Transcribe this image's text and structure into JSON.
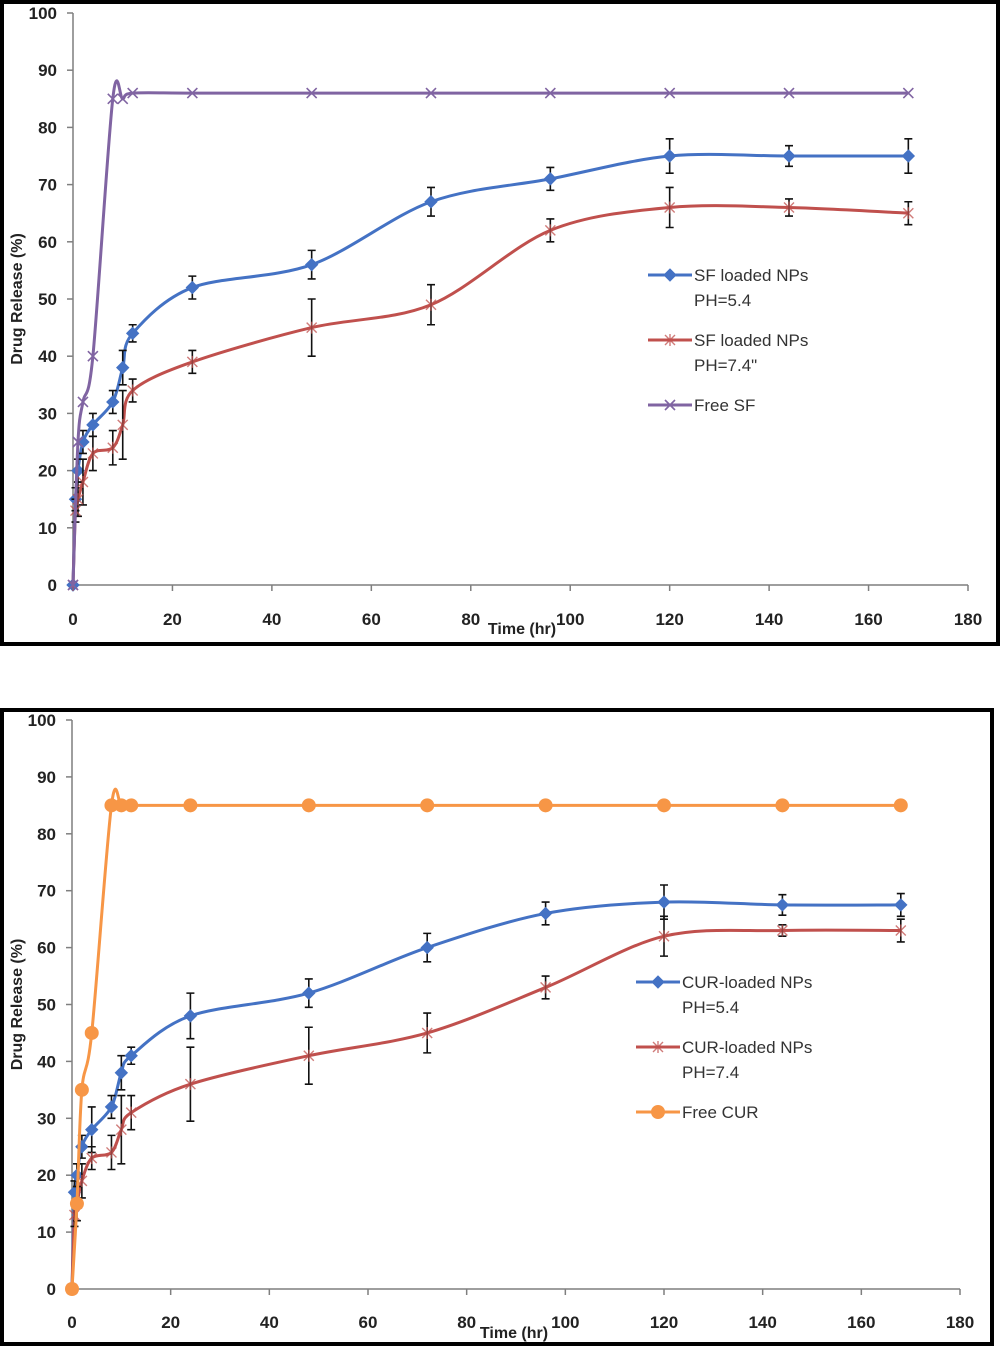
{
  "chart_data": [
    {
      "type": "line",
      "xlabel": "Time (hr)",
      "ylabel": "Drug Release (%)",
      "xlim": [
        0,
        180
      ],
      "ylim": [
        0,
        100
      ],
      "x_ticks": [
        "0",
        "20",
        "40",
        "60",
        "80",
        "100",
        "120",
        "140",
        "160",
        "180"
      ],
      "y_ticks": [
        "0",
        "10",
        "20",
        "30",
        "40",
        "50",
        "60",
        "70",
        "80",
        "90",
        "100"
      ],
      "grid": false,
      "legend_position": "right",
      "series": [
        {
          "name": "SF loaded NPs",
          "name_line2": "PH=5.4",
          "color": "#4472c4",
          "marker": "diamond",
          "x": [
            0,
            0.5,
            1,
            2,
            4,
            8,
            10,
            12,
            24,
            48,
            72,
            96,
            120,
            144,
            168
          ],
          "y": [
            0,
            15,
            20,
            25,
            28,
            32,
            38,
            44,
            52,
            56,
            67,
            71,
            75,
            75,
            75
          ],
          "err": [
            0,
            2,
            2,
            2,
            2,
            2,
            3,
            1.5,
            2,
            2.5,
            2.5,
            2,
            3,
            1.8,
            3
          ]
        },
        {
          "name": "SF loaded NPs",
          "name_line2": "PH=7.4\"",
          "color": "#c0504d",
          "marker": "star",
          "x": [
            0,
            0.5,
            1,
            2,
            4,
            8,
            10,
            12,
            24,
            48,
            72,
            96,
            120,
            144,
            168
          ],
          "y": [
            0,
            13,
            15,
            18,
            23,
            24,
            28,
            34,
            39,
            45,
            49,
            62,
            66,
            66,
            65
          ],
          "err": [
            0,
            2,
            3,
            4,
            3,
            3,
            6,
            2,
            2,
            5,
            3.5,
            2,
            3.5,
            1.5,
            2
          ]
        },
        {
          "name": "Free SF",
          "color": "#8064a2",
          "marker": "x",
          "x": [
            0,
            1,
            2,
            4,
            8,
            10,
            12,
            24,
            48,
            72,
            96,
            120,
            144,
            168
          ],
          "y": [
            0,
            25,
            32,
            40,
            85,
            85,
            86,
            86,
            86,
            86,
            86,
            86,
            86,
            86
          ],
          "err": []
        }
      ]
    },
    {
      "type": "line",
      "xlabel": "Time (hr)",
      "ylabel": "Drug Release (%)",
      "xlim": [
        0,
        180
      ],
      "ylim": [
        0,
        100
      ],
      "x_ticks": [
        "0",
        "20",
        "40",
        "60",
        "80",
        "100",
        "120",
        "140",
        "160",
        "180"
      ],
      "y_ticks": [
        "0",
        "10",
        "20",
        "30",
        "40",
        "50",
        "60",
        "70",
        "80",
        "90",
        "100"
      ],
      "grid": false,
      "legend_position": "right",
      "series": [
        {
          "name": "CUR-loaded NPs",
          "name_line2": "PH=5.4",
          "color": "#4472c4",
          "marker": "diamond",
          "x": [
            0,
            0.5,
            1,
            2,
            4,
            8,
            10,
            12,
            24,
            48,
            72,
            96,
            120,
            144,
            168
          ],
          "y": [
            0,
            17,
            20,
            25,
            28,
            32,
            38,
            41,
            48,
            52,
            60,
            66,
            68,
            67.5,
            67.5
          ],
          "err": [
            0,
            2,
            2,
            2,
            4,
            2,
            3,
            1.5,
            4,
            2.5,
            2.5,
            2,
            3,
            1.8,
            2
          ]
        },
        {
          "name": "CUR-loaded NPs",
          "name_line2": "PH=7.4",
          "color": "#c0504d",
          "marker": "star",
          "x": [
            0,
            0.5,
            1,
            2,
            4,
            8,
            10,
            12,
            24,
            48,
            72,
            96,
            120,
            144,
            168
          ],
          "y": [
            0,
            13,
            15,
            19,
            23,
            24,
            28,
            31,
            36,
            41,
            45,
            53,
            62,
            63,
            63
          ],
          "err": [
            0,
            2,
            3,
            3,
            2,
            3,
            6,
            3,
            6.5,
            5,
            3.5,
            2,
            3.5,
            1,
            2
          ]
        },
        {
          "name": "Free CUR",
          "color": "#f79646",
          "marker": "circle",
          "x": [
            0,
            1,
            2,
            4,
            8,
            10,
            12,
            24,
            48,
            72,
            96,
            120,
            144,
            168
          ],
          "y": [
            0,
            15,
            35,
            45,
            85,
            85,
            85,
            85,
            85,
            85,
            85,
            85,
            85,
            85
          ],
          "err": []
        }
      ]
    }
  ]
}
